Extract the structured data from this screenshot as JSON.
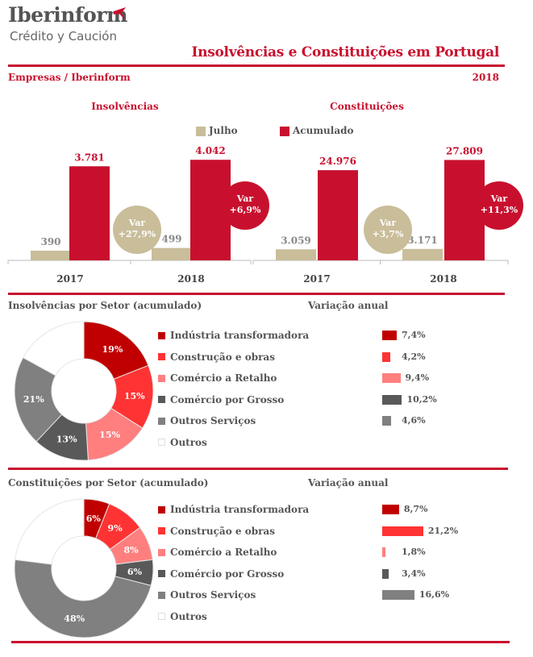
{
  "header": {
    "brand_name": "Iberinform",
    "brand_tagline": "Crédito y Caución",
    "title": "Insolvências e Constituições em Portugal",
    "subtitle": "Empresas / Iberinform",
    "year": "2018"
  },
  "colors": {
    "julho": "#c9bd9a",
    "acumulado": "#c8102e",
    "rule": "#c8102e",
    "industria": "#c00000",
    "construcao": "#ff3333",
    "comercio_retalho": "#ff7f7f",
    "comercio_grosso": "#595959",
    "outros_servicos": "#808080",
    "outros": "#ffffff"
  },
  "legend": {
    "julho": "Julho",
    "acumulado": "Acumulado"
  },
  "chart_data": [
    {
      "type": "bar",
      "title": "Insolvências",
      "categories": [
        "2017",
        "2018"
      ],
      "series": [
        {
          "name": "Julho",
          "values": [
            390,
            499
          ],
          "labels": [
            "390",
            "499"
          ]
        },
        {
          "name": "Acumulado",
          "values": [
            3781,
            4042
          ],
          "labels": [
            "3.781",
            "4.042"
          ]
        }
      ],
      "annotations": [
        {
          "label": "Var",
          "value": "+27,9%",
          "series": "Julho"
        },
        {
          "label": "Var",
          "value": "+6,9%",
          "series": "Acumulado"
        }
      ],
      "ylim": [
        0,
        4600
      ]
    },
    {
      "type": "bar",
      "title": "Constituições",
      "categories": [
        "2017",
        "2018"
      ],
      "series": [
        {
          "name": "Julho",
          "values": [
            3059,
            3171
          ],
          "labels": [
            "3.059",
            "3.171"
          ]
        },
        {
          "name": "Acumulado",
          "values": [
            24976,
            27809
          ],
          "labels": [
            "24.976",
            "27.809"
          ]
        }
      ],
      "annotations": [
        {
          "label": "Var",
          "value": "+3,7%",
          "series": "Julho"
        },
        {
          "label": "Var",
          "value": "+11,3%",
          "series": "Acumulado"
        }
      ],
      "ylim": [
        0,
        31700
      ]
    },
    {
      "type": "pie",
      "title": "Insolvências por Setor (acumulado)",
      "donut": true,
      "categories": [
        "Indústria transformadora",
        "Construção e obras",
        "Comércio a Retalho",
        "Comércio por Grosso",
        "Outros Serviços",
        "Outros"
      ],
      "values": [
        19,
        15,
        15,
        13,
        21,
        17
      ],
      "labels": [
        "19%",
        "15%",
        "15%",
        "13%",
        "21%",
        ""
      ]
    },
    {
      "type": "bar",
      "title": "Variação anual",
      "orientation": "horizontal",
      "categories": [
        "Indústria transformadora",
        "Construção e obras",
        "Comércio a Retalho",
        "Comércio por Grosso",
        "Outros Serviços"
      ],
      "values": [
        7.4,
        4.2,
        9.4,
        10.2,
        4.6
      ],
      "labels": [
        "7,4%",
        "4,2%",
        "9,4%",
        "10,2%",
        "4,6%"
      ]
    },
    {
      "type": "pie",
      "title": "Constituições por Setor (acumulado)",
      "donut": true,
      "categories": [
        "Indústria transformadora",
        "Construção e obras",
        "Comércio a Retalho",
        "Comércio por Grosso",
        "Outros Serviços",
        "Outros"
      ],
      "values": [
        6,
        9,
        8,
        6,
        48,
        23
      ],
      "labels": [
        "6%",
        "9%",
        "8%",
        "6%",
        "48%",
        ""
      ]
    },
    {
      "type": "bar",
      "title": "Variação anual",
      "orientation": "horizontal",
      "categories": [
        "Indústria transformadora",
        "Construção e obras",
        "Comércio a Retalho",
        "Comércio por Grosso",
        "Outros Serviços"
      ],
      "values": [
        8.7,
        21.2,
        1.8,
        3.4,
        16.6
      ],
      "labels": [
        "8,7%",
        "21,2%",
        "1,8%",
        "3,4%",
        "16,6%"
      ]
    }
  ]
}
